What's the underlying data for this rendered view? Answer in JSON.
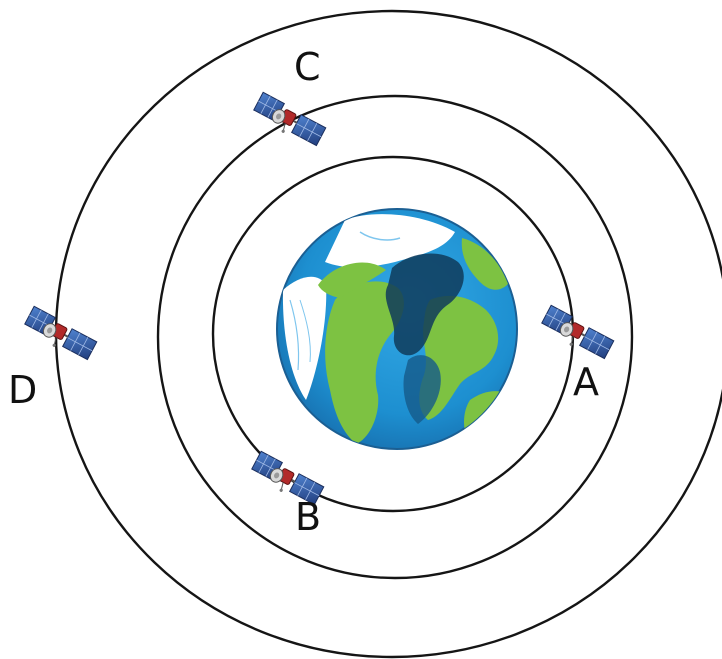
{
  "labels": {
    "a": "A",
    "b": "B",
    "c": "C",
    "d": "D"
  },
  "orbits": [
    {
      "name": "inner-orbit"
    },
    {
      "name": "middle-orbit"
    },
    {
      "name": "outer-orbit"
    }
  ],
  "colors": {
    "orbit_stroke": "#151515",
    "ocean": "#1d8fd0",
    "land": "#7dc242",
    "ice": "#ffffff",
    "solar_panel": "#2e5ea8",
    "satellite_body": "#b22a2a"
  },
  "icons": {
    "earth": "earth-icon",
    "satellite": "satellite-icon"
  }
}
